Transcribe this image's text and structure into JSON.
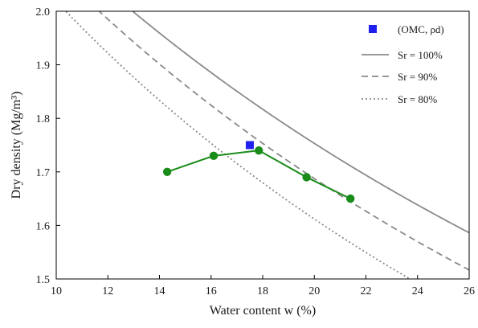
{
  "chart_data": {
    "type": "line",
    "xlabel": "Water content w (%)",
    "ylabel": "Dry density (Mg/m³)",
    "xlim": [
      10,
      26
    ],
    "ylim": [
      1.5,
      2.0
    ],
    "x_ticks": [
      "10",
      "12",
      "14",
      "16",
      "18",
      "20",
      "22",
      "24",
      "26"
    ],
    "y_ticks": [
      "1.5",
      "1.6",
      "1.7",
      "1.8",
      "1.9",
      "2.0"
    ],
    "grid": false,
    "legend_position": "top-right",
    "compaction_curve": {
      "color": "#1a8c1a",
      "points": [
        {
          "x": 14.3,
          "y": 1.7
        },
        {
          "x": 16.1,
          "y": 1.73
        },
        {
          "x": 17.85,
          "y": 1.74
        },
        {
          "x": 19.7,
          "y": 1.69
        },
        {
          "x": 21.4,
          "y": 1.65
        }
      ]
    },
    "optimum_point": {
      "name": "(OMC, ρd)",
      "x": 17.5,
      "y": 1.75,
      "color": "#1f1ff0"
    },
    "saturation_lines": [
      {
        "name": "Sr = 100%",
        "sr": 1.0,
        "style": "solid",
        "color": "#8a8a8a"
      },
      {
        "name": "Sr = 90%",
        "sr": 0.9,
        "style": "dashed",
        "color": "#8a8a8a"
      },
      {
        "name": "Sr = 80%",
        "sr": 0.8,
        "style": "dotted",
        "color": "#8a8a8a"
      }
    ]
  }
}
